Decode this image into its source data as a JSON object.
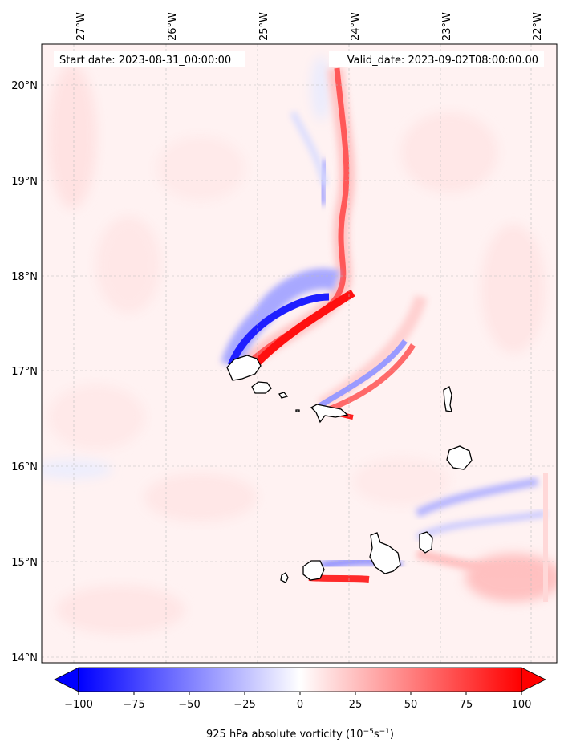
{
  "header": {
    "start_label": "Start date: 2023-08-31_00:00:00",
    "valid_label": "Valid_date: 2023-09-02T08:00:00.00"
  },
  "map": {
    "lon_ticks": [
      {
        "value": -27,
        "label": "27°W"
      },
      {
        "value": -26,
        "label": "26°W"
      },
      {
        "value": -25,
        "label": "25°W"
      },
      {
        "value": -24,
        "label": "24°W"
      },
      {
        "value": -23,
        "label": "23°W"
      },
      {
        "value": -22,
        "label": "22°W"
      }
    ],
    "lat_ticks": [
      {
        "value": 20,
        "label": "20°N"
      },
      {
        "value": 19,
        "label": "19°N"
      },
      {
        "value": 18,
        "label": "18°N"
      },
      {
        "value": 17,
        "label": "17°N"
      },
      {
        "value": 16,
        "label": "16°N"
      },
      {
        "value": 15,
        "label": "15°N"
      },
      {
        "value": 14,
        "label": "14°N"
      }
    ],
    "extent": {
      "lon_min": -27.33,
      "lon_max": -21.7,
      "lat_min": 13.95,
      "lat_max": 20.45
    },
    "field": "925 hPa absolute vorticity"
  },
  "colorbar": {
    "label_text": "925 hPa absolute vorticity (10",
    "label_exp1": "−5",
    "label_mid": "s",
    "label_exp2": "−1",
    "label_end": ")",
    "min": -100,
    "max": 100,
    "ticks": [
      {
        "value": -100,
        "label": "−100"
      },
      {
        "value": -75,
        "label": "−75"
      },
      {
        "value": -50,
        "label": "−50"
      },
      {
        "value": -25,
        "label": "−25"
      },
      {
        "value": 0,
        "label": "0"
      },
      {
        "value": 25,
        "label": "25"
      },
      {
        "value": 50,
        "label": "50"
      },
      {
        "value": 75,
        "label": "75"
      },
      {
        "value": 100,
        "label": "100"
      }
    ],
    "cmap": "bwr",
    "extend": "both"
  },
  "colors": {
    "positive": "#ff0000",
    "negative": "#0000ff",
    "neutral": "#ffffff",
    "coastline": "#000000"
  }
}
